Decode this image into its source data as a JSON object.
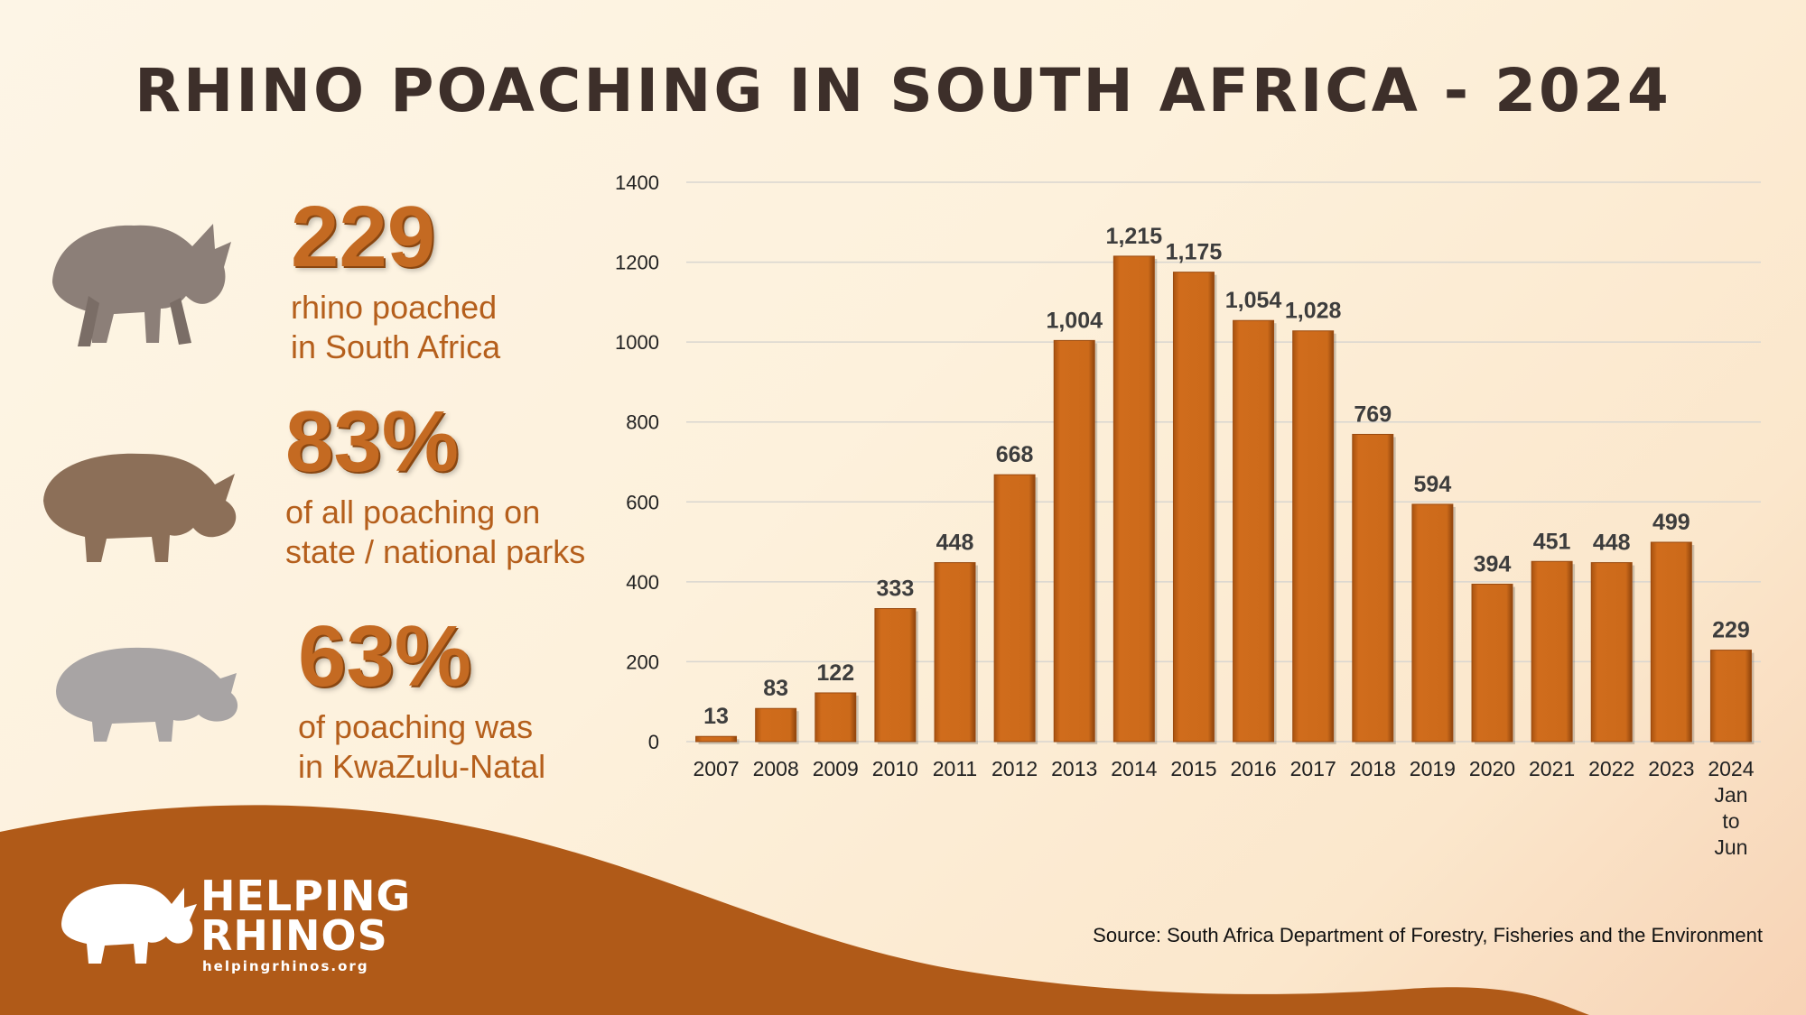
{
  "title": "RHINO POACHING IN SOUTH AFRICA - 2024",
  "stats": [
    {
      "value": "229",
      "line1": "rhino poached",
      "line2": "in South Africa",
      "icon": "black-rhino-icon"
    },
    {
      "value": "83%",
      "line1": "of all poaching on",
      "line2": "state / national parks",
      "icon": "white-rhino-icon"
    },
    {
      "value": "63%",
      "line1": "of poaching was",
      "line2": "in KwaZulu-Natal",
      "icon": "rhino-calf-icon"
    }
  ],
  "logo": {
    "line1": "HELPING",
    "line2": "RHINOS",
    "url": "helpingrhinos.org"
  },
  "source": "Source: South Africa Department of Forestry, Fisheries and the Environment",
  "colors": {
    "bar": "#c8661a",
    "bar_dark": "#9a4a10",
    "accent": "#c46a22",
    "wave": "#b05a18"
  },
  "chart_data": {
    "type": "bar",
    "title": "",
    "xlabel": "",
    "ylabel": "",
    "ylim": [
      0,
      1400
    ],
    "yticks": [
      0,
      200,
      400,
      600,
      800,
      1000,
      1200,
      1400
    ],
    "grid": true,
    "categories": [
      "2007",
      "2008",
      "2009",
      "2010",
      "2011",
      "2012",
      "2013",
      "2014",
      "2015",
      "2016",
      "2017",
      "2018",
      "2019",
      "2020",
      "2021",
      "2022",
      "2023",
      "2024\nJan\nto\nJun"
    ],
    "values": [
      13,
      83,
      122,
      333,
      448,
      668,
      1004,
      1215,
      1175,
      1054,
      1028,
      769,
      594,
      394,
      451,
      448,
      499,
      229
    ],
    "data_labels": [
      "13",
      "83",
      "122",
      "333",
      "448",
      "668",
      "1,004",
      "1,215",
      "1,175",
      "1,054",
      "1,028",
      "769",
      "594",
      "394",
      "451",
      "448",
      "499",
      "229"
    ]
  }
}
